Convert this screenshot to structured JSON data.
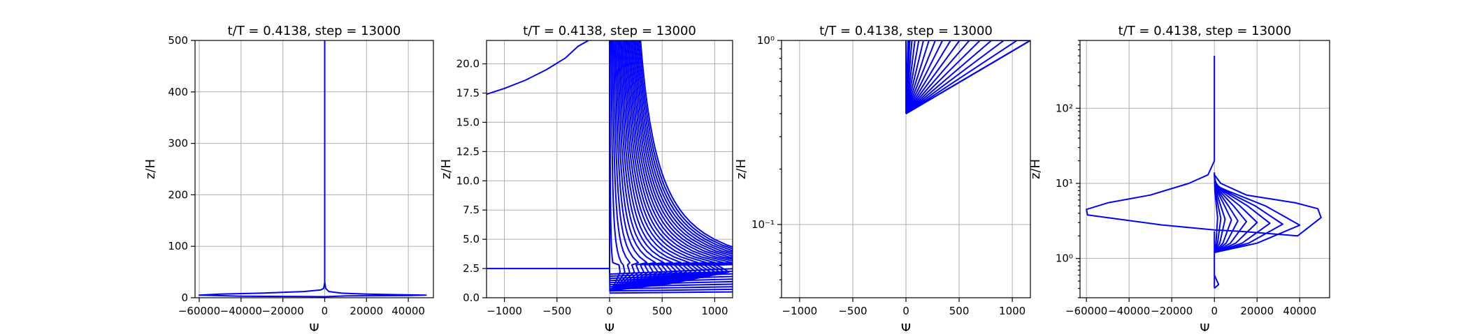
{
  "colors": {
    "line": "#0000ff",
    "grid": "#b0b0b0",
    "axis": "#000000"
  },
  "chart_data": [
    {
      "type": "line",
      "title": "t/T = 0.4138, step = 13000",
      "xlabel": "Ψ",
      "ylabel": "z/H",
      "xlim": [
        -62000,
        52000
      ],
      "ylim": [
        0,
        500
      ],
      "yscale": "linear",
      "grid": true,
      "xticks": [
        -60000,
        -40000,
        -20000,
        0,
        20000,
        40000
      ],
      "xtick_labels": [
        "−60000",
        "−40000",
        "−20000",
        "0",
        "20000",
        "40000"
      ],
      "yticks": [
        0,
        100,
        200,
        300,
        400,
        500
      ],
      "ytick_labels": [
        "0",
        "100",
        "200",
        "300",
        "400",
        "500"
      ],
      "series": [
        {
          "x": [
            0,
            0,
            500,
            2000,
            8000,
            20000,
            35000,
            48500,
            40000,
            10000,
            0
          ],
          "y": [
            500,
            30,
            18,
            12,
            9,
            7,
            6,
            5,
            4.5,
            3.5,
            2
          ]
        },
        {
          "x": [
            0,
            -500,
            -2000,
            -10000,
            -30000,
            -50000,
            -60000,
            -40000,
            -10000,
            0
          ],
          "y": [
            30,
            18,
            15,
            12,
            9,
            7,
            5,
            3,
            2.5,
            2
          ]
        }
      ]
    },
    {
      "type": "line",
      "title": "t/T = 0.4138, step = 13000",
      "xlabel": "Ψ",
      "ylabel": "z/H",
      "xlim": [
        -1170,
        1170
      ],
      "ylim": [
        0,
        22
      ],
      "yscale": "linear",
      "grid": true,
      "xticks": [
        -1000,
        -500,
        0,
        500,
        1000
      ],
      "xtick_labels": [
        "−1000",
        "−500",
        "0",
        "500",
        "1000"
      ],
      "yticks": [
        0,
        2.5,
        5,
        7.5,
        10,
        12.5,
        15,
        17.5,
        20
      ],
      "ytick_labels": [
        "0.0",
        "2.5",
        "5.0",
        "7.5",
        "10.0",
        "12.5",
        "15.0",
        "17.5",
        "20.0"
      ],
      "series": [
        {
          "x": [
            -1170,
            -1000,
            -800,
            -600,
            -420,
            -300,
            -200
          ],
          "y": [
            17.4,
            17.9,
            18.6,
            19.5,
            20.5,
            21.5,
            22
          ]
        },
        {
          "x": [
            0,
            0,
            2.5
          ],
          "y": [
            22,
            2.5,
            0.5
          ]
        },
        {
          "x": [
            -1170,
            0
          ],
          "y": [
            2.5,
            2.5
          ]
        }
      ]
    },
    {
      "type": "line",
      "title": "t/T = 0.4138, step = 13000",
      "xlabel": "Ψ",
      "ylabel": "z/H",
      "xlim": [
        -1170,
        1170
      ],
      "ylim": [
        0.04,
        1
      ],
      "yscale": "log",
      "grid": true,
      "xticks": [
        -1000,
        -500,
        0,
        500,
        1000
      ],
      "xtick_labels": [
        "−1000",
        "−500",
        "0",
        "500",
        "1000"
      ],
      "yticks": [
        0.1,
        1
      ],
      "ytick_labels": [
        "10⁻¹",
        "10⁰"
      ],
      "series": [
        {
          "x": [
            0,
            0
          ],
          "y": [
            0.4,
            1
          ]
        }
      ]
    },
    {
      "type": "line",
      "title": "t/T = 0.4138, step = 13000",
      "xlabel": "Ψ",
      "ylabel": "z/H",
      "xlim": [
        -63000,
        54000
      ],
      "ylim": [
        0.3,
        800
      ],
      "yscale": "log",
      "grid": true,
      "xticks": [
        -60000,
        -40000,
        -20000,
        0,
        20000,
        40000
      ],
      "xtick_labels": [
        "−60000",
        "−40000",
        "−20000",
        "0",
        "20000",
        "40000"
      ],
      "yticks": [
        1,
        10,
        100
      ],
      "ytick_labels": [
        "10⁰",
        "10¹",
        "10²"
      ],
      "series": [
        {
          "x": [
            0,
            0,
            -3000,
            -12000,
            -30000,
            -50000,
            -60000,
            -59500,
            -25000,
            0,
            12000,
            39000,
            50000,
            48500,
            38000,
            15000,
            3000,
            0
          ],
          "y": [
            500,
            20,
            13,
            10,
            7,
            5.5,
            4.5,
            3.8,
            2.8,
            2.4,
            2.3,
            2.0,
            3.5,
            4.6,
            5.5,
            7,
            10,
            13
          ]
        }
      ]
    }
  ]
}
